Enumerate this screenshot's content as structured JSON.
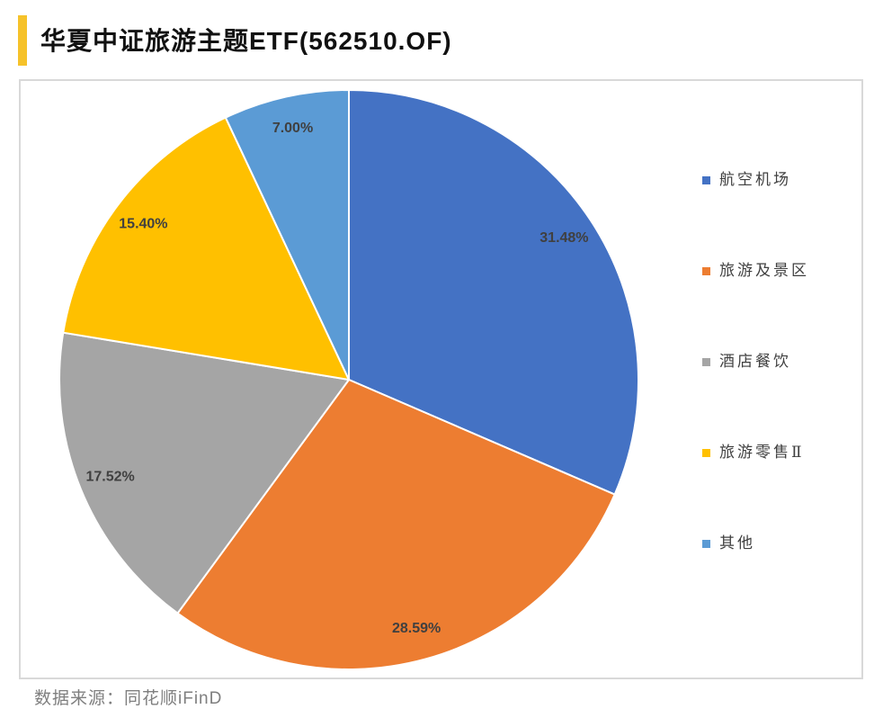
{
  "colors": {
    "accent": "#F6C22A"
  },
  "chart_data": {
    "type": "pie",
    "title": "华夏中证旅游主题ETF(562510.OF)",
    "categories": [
      "航空机场",
      "旅游及景区",
      "酒店餐饮",
      "旅游零售Ⅱ",
      "其他"
    ],
    "values": [
      31.48,
      28.59,
      17.52,
      15.4,
      7.0
    ],
    "value_labels": [
      "31.48%",
      "28.59%",
      "17.52%",
      "15.40%",
      "7.00%"
    ],
    "colors": [
      "#4472C4",
      "#ED7D31",
      "#A5A5A5",
      "#FFC000",
      "#5B9BD5"
    ],
    "legend": "right"
  },
  "footer": {
    "source": "数据来源：同花顺iFinD"
  }
}
